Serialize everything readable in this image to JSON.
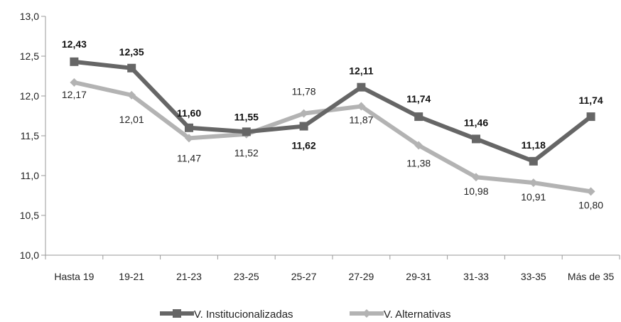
{
  "chart_data": {
    "type": "line",
    "categories": [
      "Hasta 19",
      "19-21",
      "21-23",
      "23-25",
      "25-27",
      "27-29",
      "29-31",
      "31-33",
      "33-35",
      "Más de 35"
    ],
    "ylim": [
      10.0,
      13.0
    ],
    "yticks": [
      "10,0",
      "10,5",
      "11,0",
      "11,5",
      "12,0",
      "12,5",
      "13,0"
    ],
    "grid": false,
    "legend_position": "bottom",
    "series": [
      {
        "name": "V. Institucionalizadas",
        "color": "#666666",
        "marker": "square",
        "values": [
          12.43,
          12.35,
          11.6,
          11.55,
          11.62,
          12.11,
          11.74,
          11.46,
          11.18,
          11.74
        ],
        "labels": [
          "12,43",
          "12,35",
          "11,60",
          "11,55",
          "11,62",
          "12,11",
          "11,74",
          "11,46",
          "11,18",
          "11,74"
        ]
      },
      {
        "name": "V. Alternativas",
        "color": "#b3b3b3",
        "marker": "diamond",
        "values": [
          12.17,
          12.01,
          11.47,
          11.52,
          11.78,
          11.87,
          11.38,
          10.98,
          10.91,
          10.8
        ],
        "labels": [
          "12,17",
          "12,01",
          "11,47",
          "11,52",
          "11,78",
          "11,87",
          "11,38",
          "10,98",
          "10,91",
          "10,80"
        ]
      }
    ]
  }
}
